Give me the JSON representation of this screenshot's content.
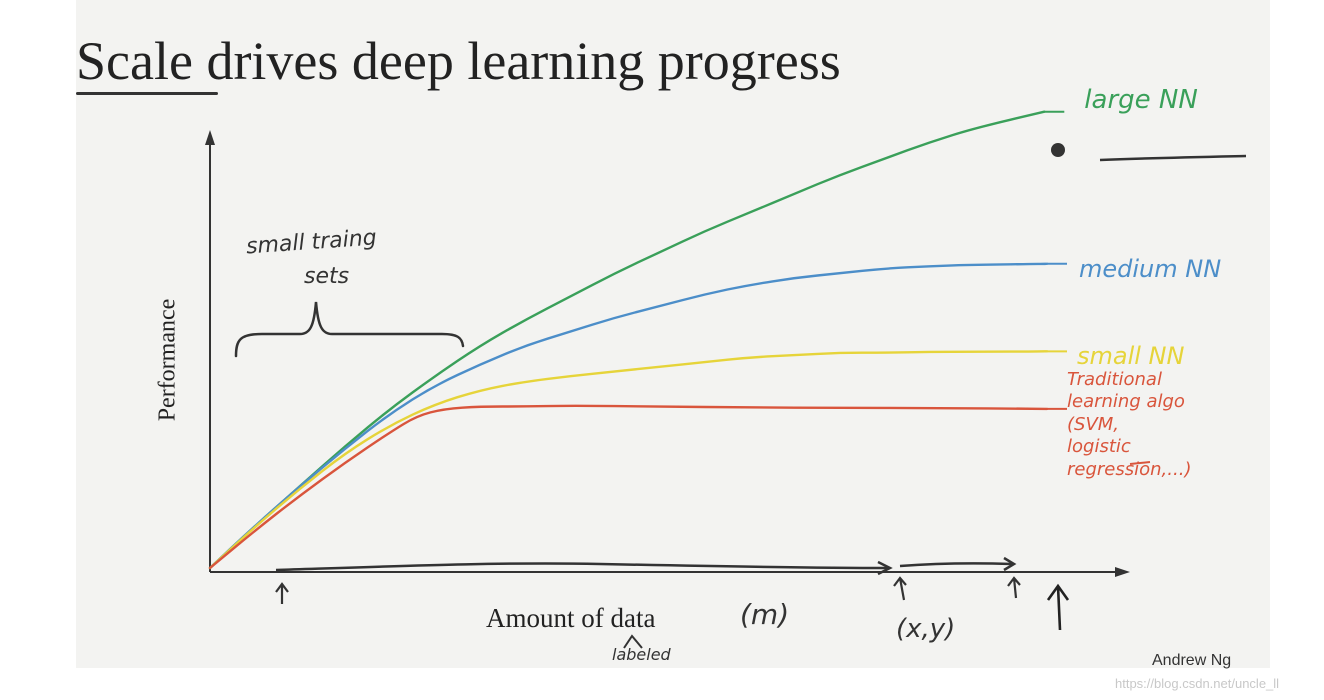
{
  "title": "Scale drives deep learning progress",
  "credit": "Andrew Ng",
  "watermark": "https://blog.csdn.net/uncle_ll",
  "annotations": {
    "small_training_line1": "small traing",
    "small_training_line2": "sets",
    "xy": "(x,y)",
    "m": "(m)",
    "labeled": "labeled"
  },
  "chart_data": {
    "type": "line",
    "xlabel": "Amount of data",
    "ylabel": "Performance",
    "xlim": [
      0,
      10
    ],
    "ylim": [
      0,
      10
    ],
    "grid": false,
    "legend": "inline-right",
    "series": [
      {
        "name": "large NN",
        "color": "#3aa05a",
        "x": [
          0,
          0.5,
          1,
          1.5,
          2,
          2.5,
          3,
          3.5,
          4,
          4.5,
          5,
          5.5,
          6,
          6.5,
          7,
          7.5,
          8,
          8.5,
          9.27
        ],
        "y": [
          0,
          0.9,
          1.75,
          2.6,
          3.4,
          4.1,
          4.75,
          5.3,
          5.8,
          6.3,
          6.75,
          7.2,
          7.6,
          8.0,
          8.4,
          8.75,
          9.1,
          9.4,
          9.75
        ]
      },
      {
        "name": "medium NN",
        "color": "#4c8ec9",
        "x": [
          0,
          0.5,
          1,
          1.5,
          2,
          2.5,
          3,
          3.5,
          4,
          4.5,
          5,
          5.5,
          6,
          6.5,
          7,
          7.5,
          8,
          8.5,
          9.3
        ],
        "y": [
          0,
          0.9,
          1.75,
          2.55,
          3.3,
          3.9,
          4.35,
          4.75,
          5.05,
          5.35,
          5.6,
          5.85,
          6.05,
          6.2,
          6.3,
          6.4,
          6.45,
          6.48,
          6.5
        ]
      },
      {
        "name": "small NN",
        "color": "#e6d43a",
        "x": [
          0,
          0.5,
          1,
          1.5,
          2,
          2.5,
          3,
          3.5,
          4,
          4.5,
          5,
          5.5,
          6,
          6.5,
          7,
          7.5,
          8,
          8.5,
          9.3
        ],
        "y": [
          0,
          0.88,
          1.7,
          2.45,
          3.05,
          3.5,
          3.8,
          3.98,
          4.1,
          4.2,
          4.3,
          4.4,
          4.5,
          4.55,
          4.6,
          4.6,
          4.62,
          4.62,
          4.63
        ]
      },
      {
        "name": "Traditional learning algo (SVM, logistic regression,...)",
        "color": "#d9553c",
        "x": [
          0,
          0.5,
          1,
          1.5,
          2,
          2.3,
          2.6,
          3,
          3.5,
          4,
          5,
          6,
          7,
          8,
          9.3
        ],
        "y": [
          0,
          0.8,
          1.55,
          2.25,
          2.9,
          3.25,
          3.4,
          3.45,
          3.45,
          3.47,
          3.45,
          3.43,
          3.42,
          3.42,
          3.4
        ]
      }
    ],
    "series_labels": [
      [
        "large NN"
      ],
      [
        "medium NN"
      ],
      [
        "small NN"
      ],
      [
        "Traditional",
        "learning algo",
        "(SVM,",
        "logistic",
        "regression,...)"
      ]
    ]
  }
}
